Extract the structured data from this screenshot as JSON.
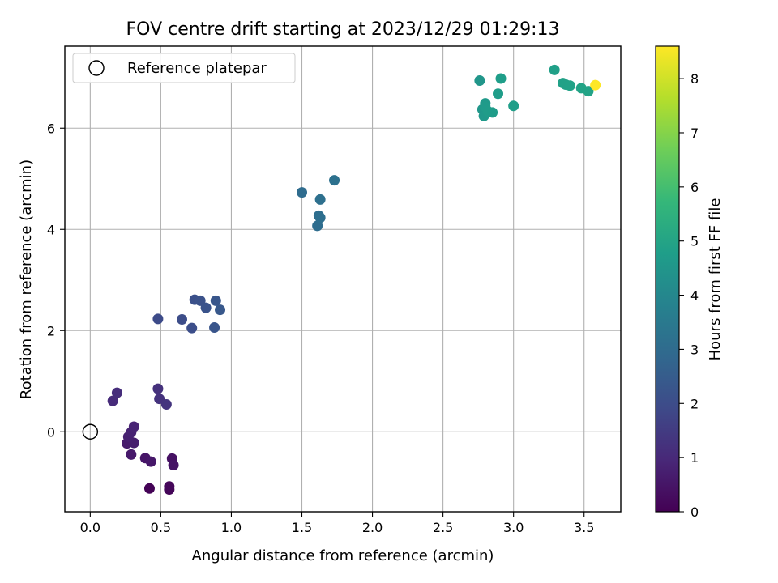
{
  "chart_data": {
    "type": "scatter",
    "title": "FOV centre drift starting at 2023/12/29 01:29:13",
    "xlabel": "Angular distance from reference (arcmin)",
    "ylabel": "Rotation from reference (arcmin)",
    "xlim": [
      -0.18,
      3.76
    ],
    "ylim": [
      -1.58,
      7.62
    ],
    "xticks": [
      0.0,
      0.5,
      1.0,
      1.5,
      2.0,
      2.5,
      3.0,
      3.5
    ],
    "xtick_labels": [
      "0.0",
      "0.5",
      "1.0",
      "1.5",
      "2.0",
      "2.5",
      "3.0",
      "3.5"
    ],
    "yticks": [
      0,
      2,
      4,
      6
    ],
    "ytick_labels": [
      "0",
      "2",
      "4",
      "6"
    ],
    "grid": true,
    "legend": {
      "position": "top-left",
      "entries": [
        "Reference platepar"
      ]
    },
    "reference_point": {
      "x": 0.0,
      "y": 0.0,
      "label": "Reference platepar",
      "marker": "hollow-circle"
    },
    "colorbar": {
      "label": "Hours from first FF file",
      "colormap": "viridis",
      "range": [
        0,
        8.6
      ],
      "ticks": [
        0,
        1,
        2,
        3,
        4,
        5,
        6,
        7,
        8
      ],
      "tick_labels": [
        "0",
        "1",
        "2",
        "3",
        "4",
        "5",
        "6",
        "7",
        "8"
      ]
    },
    "colormap_stops": [
      "#440154",
      "#482878",
      "#3e4a89",
      "#31688e",
      "#26828e",
      "#1f9e89",
      "#35b779",
      "#6ece58",
      "#b5de2b",
      "#fde725"
    ],
    "points": [
      {
        "x": 0.42,
        "y": -1.12,
        "c": 0.05
      },
      {
        "x": 0.56,
        "y": -1.14,
        "c": 0.1
      },
      {
        "x": 0.56,
        "y": -1.08,
        "c": 0.15
      },
      {
        "x": 0.58,
        "y": -0.53,
        "c": 0.4
      },
      {
        "x": 0.59,
        "y": -0.66,
        "c": 0.45
      },
      {
        "x": 0.39,
        "y": -0.52,
        "c": 0.5
      },
      {
        "x": 0.43,
        "y": -0.59,
        "c": 0.55
      },
      {
        "x": 0.29,
        "y": -0.45,
        "c": 0.6
      },
      {
        "x": 0.26,
        "y": -0.23,
        "c": 0.65
      },
      {
        "x": 0.31,
        "y": -0.22,
        "c": 0.7
      },
      {
        "x": 0.27,
        "y": -0.1,
        "c": 0.75
      },
      {
        "x": 0.29,
        "y": -0.01,
        "c": 0.8
      },
      {
        "x": 0.31,
        "y": 0.1,
        "c": 0.85
      },
      {
        "x": 0.16,
        "y": 0.61,
        "c": 1.05
      },
      {
        "x": 0.19,
        "y": 0.77,
        "c": 1.1
      },
      {
        "x": 0.48,
        "y": 0.85,
        "c": 1.2
      },
      {
        "x": 0.49,
        "y": 0.65,
        "c": 1.25
      },
      {
        "x": 0.54,
        "y": 0.54,
        "c": 1.3
      },
      {
        "x": 0.48,
        "y": 2.23,
        "c": 1.95
      },
      {
        "x": 0.65,
        "y": 2.22,
        "c": 2.0
      },
      {
        "x": 0.72,
        "y": 2.05,
        "c": 2.05
      },
      {
        "x": 0.74,
        "y": 2.61,
        "c": 2.1
      },
      {
        "x": 0.78,
        "y": 2.59,
        "c": 2.15
      },
      {
        "x": 0.82,
        "y": 2.45,
        "c": 2.2
      },
      {
        "x": 0.88,
        "y": 2.06,
        "c": 2.25
      },
      {
        "x": 0.89,
        "y": 2.59,
        "c": 2.3
      },
      {
        "x": 0.92,
        "y": 2.41,
        "c": 2.35
      },
      {
        "x": 1.5,
        "y": 4.73,
        "c": 3.0
      },
      {
        "x": 1.61,
        "y": 4.07,
        "c": 3.05
      },
      {
        "x": 1.62,
        "y": 4.27,
        "c": 3.1
      },
      {
        "x": 1.63,
        "y": 4.23,
        "c": 3.12
      },
      {
        "x": 1.63,
        "y": 4.59,
        "c": 3.15
      },
      {
        "x": 1.73,
        "y": 4.97,
        "c": 3.2
      },
      {
        "x": 2.76,
        "y": 6.94,
        "c": 4.5
      },
      {
        "x": 2.78,
        "y": 6.37,
        "c": 4.55
      },
      {
        "x": 2.79,
        "y": 6.24,
        "c": 4.6
      },
      {
        "x": 2.8,
        "y": 6.49,
        "c": 4.65
      },
      {
        "x": 2.8,
        "y": 6.42,
        "c": 4.68
      },
      {
        "x": 2.82,
        "y": 6.33,
        "c": 4.7
      },
      {
        "x": 2.85,
        "y": 6.31,
        "c": 4.72
      },
      {
        "x": 2.89,
        "y": 6.68,
        "c": 4.75
      },
      {
        "x": 2.91,
        "y": 6.98,
        "c": 4.78
      },
      {
        "x": 3.0,
        "y": 6.44,
        "c": 4.8
      },
      {
        "x": 3.29,
        "y": 7.15,
        "c": 4.85
      },
      {
        "x": 3.35,
        "y": 6.89,
        "c": 4.88
      },
      {
        "x": 3.37,
        "y": 6.86,
        "c": 4.9
      },
      {
        "x": 3.4,
        "y": 6.84,
        "c": 4.92
      },
      {
        "x": 3.48,
        "y": 6.79,
        "c": 4.95
      },
      {
        "x": 3.53,
        "y": 6.73,
        "c": 4.97
      },
      {
        "x": 3.58,
        "y": 6.85,
        "c": 8.6
      }
    ]
  }
}
